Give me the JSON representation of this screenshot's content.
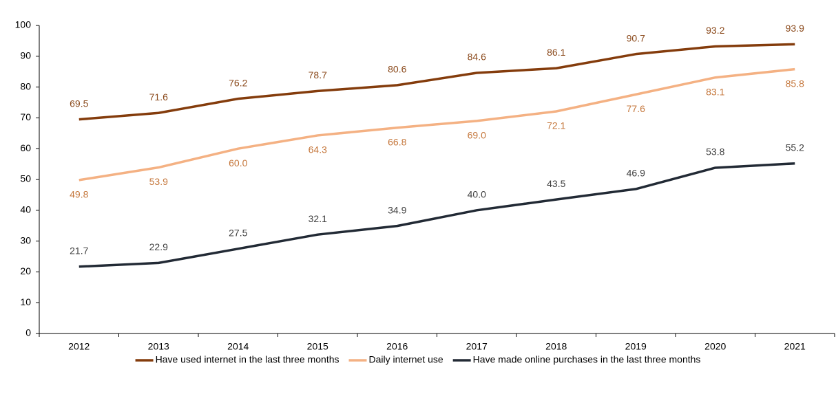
{
  "chart_data": {
    "type": "line",
    "categories": [
      "2012",
      "2013",
      "2014",
      "2015",
      "2016",
      "2017",
      "2018",
      "2019",
      "2020",
      "2021"
    ],
    "series": [
      {
        "name": "Have used internet in the last three months",
        "color": "#843c0c",
        "label_color": "#8b4a1c",
        "values": [
          69.5,
          71.6,
          76.2,
          78.7,
          80.6,
          84.6,
          86.1,
          90.7,
          93.2,
          93.9
        ]
      },
      {
        "name": "Daily internet use",
        "color": "#f4b183",
        "label_color": "#c5773c",
        "values": [
          49.8,
          53.9,
          60.0,
          64.3,
          66.8,
          69.0,
          72.1,
          77.6,
          83.1,
          85.8
        ],
        "value_labels": [
          "49.8",
          "53.9",
          "60.0",
          "64.3",
          "66.8",
          "69.0",
          "72.1",
          "77.6",
          "83.1",
          "85.8"
        ]
      },
      {
        "name": "Have made online purchases in the last three months",
        "color": "#222a35",
        "label_color": "#404040",
        "values": [
          21.7,
          22.9,
          27.5,
          32.1,
          34.9,
          40.0,
          43.5,
          46.9,
          53.8,
          55.2
        ],
        "value_labels": [
          "21.7",
          "22.9",
          "27.5",
          "32.1",
          "34.9",
          "40.0",
          "43.5",
          "46.9",
          "53.8",
          "55.2"
        ]
      }
    ],
    "ylim": [
      0,
      100
    ],
    "yticks": [
      0,
      10,
      20,
      30,
      40,
      50,
      60,
      70,
      80,
      90,
      100
    ],
    "legend": "bottom"
  }
}
